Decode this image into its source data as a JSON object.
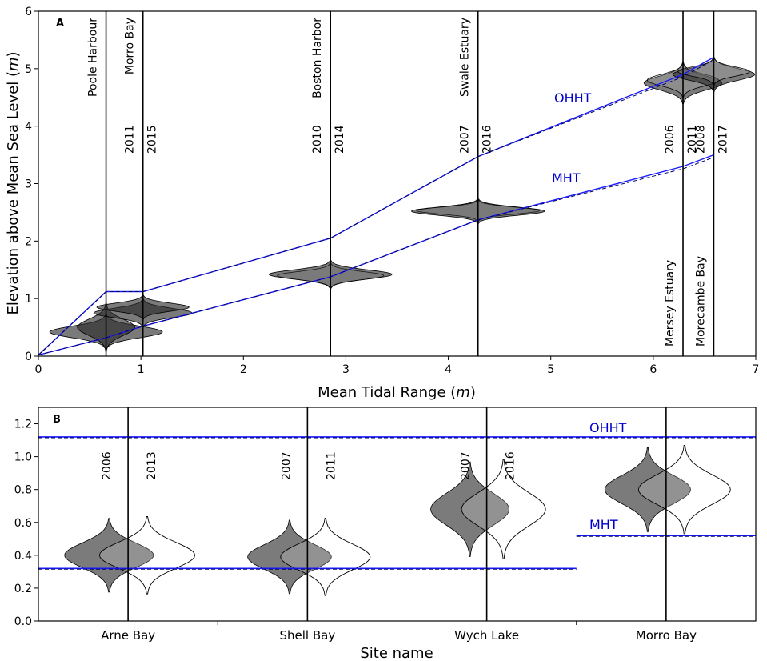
{
  "chart_data": [
    {
      "panel": "A",
      "type": "violin",
      "xlabel": "Mean Tidal Range",
      "xunit": "m",
      "ylabel": "Elevation above Mean Sea Level",
      "yunit": "m",
      "xlim": [
        0,
        7
      ],
      "ylim": [
        0,
        6
      ],
      "xticks": [
        "0",
        "1",
        "2",
        "3",
        "4",
        "5",
        "6",
        "7"
      ],
      "yticks": [
        "0",
        "1",
        "2",
        "3",
        "4",
        "5",
        "6"
      ],
      "sites": [
        {
          "name": "Poole Harbour",
          "x": 0.66,
          "years": []
        },
        {
          "name": "Morro Bay",
          "x": 1.02,
          "years": [
            "2011",
            "2015"
          ]
        },
        {
          "name": "Boston Harbor",
          "x": 2.85,
          "years": [
            "2010",
            "2014"
          ]
        },
        {
          "name": "Swale Estuary",
          "x": 4.29,
          "years": [
            "2007",
            "2016"
          ]
        },
        {
          "name": "Mersey Estuary",
          "x": 6.29,
          "years": [
            "2006",
            "2011"
          ]
        },
        {
          "name": "Morecambe Bay",
          "x": 6.59,
          "years": [
            "2008",
            "2017"
          ]
        }
      ],
      "series": [
        {
          "name": "OHHT",
          "x": [
            0,
            0.66,
            1.02,
            2.85,
            4.29,
            6.29,
            6.59
          ],
          "y": [
            0.02,
            1.12,
            1.12,
            2.05,
            3.47,
            4.9,
            5.2
          ]
        },
        {
          "name": "MHT",
          "x": [
            0,
            0.66,
            1.02,
            2.85,
            4.29,
            6.29,
            6.59
          ],
          "y": [
            0.02,
            0.32,
            0.52,
            1.38,
            2.37,
            3.3,
            3.5
          ]
        }
      ],
      "violins": [
        {
          "x": 0.66,
          "center": 0.42,
          "spread": 0.1,
          "width": 0.55,
          "filled": true
        },
        {
          "x": 0.66,
          "center": 0.5,
          "spread": 0.14,
          "width": 0.28,
          "filled": true
        },
        {
          "x": 1.02,
          "center": 0.75,
          "spread": 0.08,
          "width": 0.48,
          "filled": true
        },
        {
          "x": 1.02,
          "center": 0.85,
          "spread": 0.07,
          "width": 0.45,
          "filled": true
        },
        {
          "x": 2.85,
          "center": 1.4,
          "spread": 0.07,
          "width": 0.52,
          "filled": false
        },
        {
          "x": 2.85,
          "center": 1.42,
          "spread": 0.08,
          "width": 0.6,
          "filled": true
        },
        {
          "x": 4.29,
          "center": 2.53,
          "spread": 0.06,
          "width": 0.6,
          "filled": false
        },
        {
          "x": 4.29,
          "center": 2.52,
          "spread": 0.07,
          "width": 0.65,
          "filled": true
        },
        {
          "x": 6.29,
          "center": 4.75,
          "spread": 0.12,
          "width": 0.38,
          "filled": true
        },
        {
          "x": 6.29,
          "center": 4.8,
          "spread": 0.1,
          "width": 0.35,
          "filled": false
        },
        {
          "x": 6.59,
          "center": 4.9,
          "spread": 0.1,
          "width": 0.4,
          "filled": true
        },
        {
          "x": 6.59,
          "center": 4.95,
          "spread": 0.08,
          "width": 0.35,
          "filled": false
        }
      ]
    },
    {
      "panel": "B",
      "type": "violin",
      "xlabel": "Site name",
      "ylabel": "",
      "ylim": [
        0,
        1.3
      ],
      "yticks": [
        "0.0",
        "0.2",
        "0.4",
        "0.6",
        "0.8",
        "1.0",
        "1.2"
      ],
      "categories": [
        "Arne Bay",
        "Shell Bay",
        "Wych Lake",
        "Morro Bay"
      ],
      "years": [
        [
          "2006",
          "2013"
        ],
        [
          "2007",
          "2011"
        ],
        [
          "2007",
          "2016"
        ],
        [
          "",
          ""
        ]
      ],
      "series": [
        {
          "name": "OHHT",
          "values": [
            1.12,
            1.12,
            1.12,
            1.12
          ]
        },
        {
          "name": "MHT",
          "values": [
            0.32,
            0.32,
            0.32,
            0.52
          ]
        }
      ],
      "violins": [
        {
          "cat": 0,
          "center": 0.4,
          "spread": 0.07,
          "width": 0.85,
          "filled": true
        },
        {
          "cat": 1,
          "center": 0.39,
          "spread": 0.07,
          "width": 0.8,
          "filled": true
        },
        {
          "cat": 2,
          "center": 0.68,
          "spread": 0.09,
          "width": 0.75,
          "filled": true
        },
        {
          "cat": 3,
          "center": 0.8,
          "spread": 0.08,
          "width": 0.82,
          "filled": true
        }
      ]
    }
  ]
}
